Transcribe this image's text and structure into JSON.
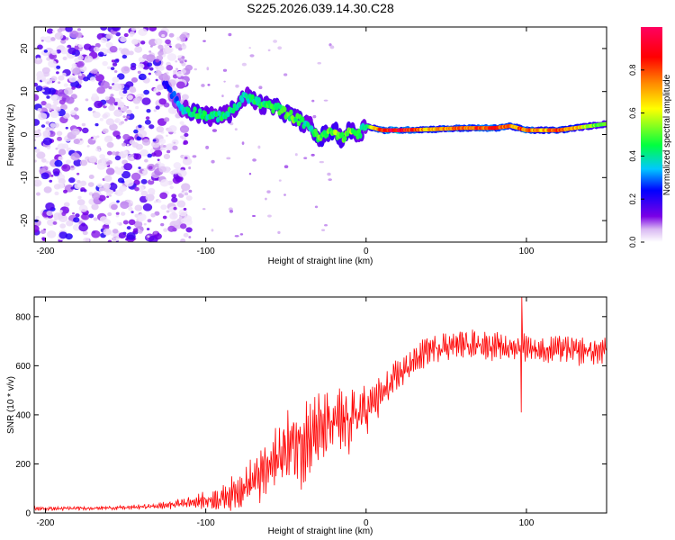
{
  "title": "S225.2026.039.14.30.C28",
  "chart_data": [
    {
      "type": "heatmap",
      "xlabel": "Height of straight line (km)",
      "ylabel": "Frequency (Hz)",
      "xlim": [
        -207,
        150
      ],
      "ylim": [
        -25,
        25
      ],
      "xticks": [
        -200,
        -100,
        0,
        100
      ],
      "yticks": [
        -20,
        -10,
        0,
        10,
        20
      ],
      "colorbar": {
        "label": "Normalized spectral amplitude",
        "range": [
          0,
          1
        ],
        "ticks": [
          0.0,
          0.2,
          0.4,
          0.6,
          0.8
        ],
        "colors": [
          "#ffffff",
          "#d9b8f2",
          "#7a00e6",
          "#0000ff",
          "#00c8ff",
          "#00ff40",
          "#ffff00",
          "#ff8800",
          "#ff0000",
          "#ff0060"
        ]
      },
      "ridge": {
        "x": [
          -125,
          -115,
          -105,
          -95,
          -85,
          -75,
          -65,
          -55,
          -45,
          -40,
          -35,
          -30,
          -25,
          -20,
          -15,
          -10,
          -5,
          0,
          10,
          20,
          40,
          60,
          80,
          90,
          100,
          110,
          120,
          130,
          140,
          150
        ],
        "freq": [
          12,
          6,
          5,
          4,
          5,
          9,
          7,
          6,
          4,
          3,
          2,
          -1,
          0,
          1,
          -1,
          1,
          0,
          2,
          1,
          1,
          1.2,
          1.5,
          1.5,
          2,
          1,
          1,
          1,
          1.5,
          2,
          2.5
        ],
        "amp": [
          0.2,
          0.35,
          0.45,
          0.4,
          0.45,
          0.4,
          0.45,
          0.45,
          0.5,
          0.45,
          0.4,
          0.5,
          0.5,
          0.55,
          0.5,
          0.55,
          0.45,
          0.4,
          0.9,
          0.95,
          0.7,
          0.8,
          0.85,
          0.75,
          0.8,
          0.7,
          0.8,
          0.75,
          0.55,
          0.5
        ]
      },
      "noise_region": [
        -207,
        -120
      ]
    },
    {
      "type": "line",
      "xlabel": "Height of straight line (km)",
      "ylabel": "SNR (10 * v/v)",
      "xlim": [
        -207,
        150
      ],
      "ylim": [
        0,
        880
      ],
      "xticks": [
        -200,
        -100,
        0,
        100
      ],
      "yticks": [
        0,
        200,
        400,
        600,
        800
      ],
      "color": "#ff0000",
      "series": [
        {
          "name": "SNR",
          "x": [
            -207,
            -190,
            -170,
            -150,
            -130,
            -120,
            -110,
            -100,
            -90,
            -80,
            -70,
            -60,
            -50,
            -40,
            -30,
            -20,
            -10,
            0,
            10,
            20,
            30,
            40,
            50,
            60,
            70,
            80,
            90,
            100,
            110,
            120,
            130,
            140,
            150
          ],
          "mean": [
            18,
            18,
            20,
            22,
            28,
            35,
            45,
            50,
            60,
            90,
            130,
            190,
            260,
            300,
            330,
            360,
            380,
            420,
            480,
            560,
            620,
            670,
            680,
            690,
            690,
            680,
            670,
            680,
            660,
            670,
            660,
            660,
            660
          ],
          "amp": [
            8,
            8,
            8,
            10,
            12,
            20,
            30,
            40,
            50,
            80,
            110,
            130,
            170,
            200,
            170,
            150,
            150,
            140,
            90,
            70,
            60,
            60,
            60,
            60,
            60,
            60,
            60,
            60,
            60,
            60,
            60,
            60,
            60
          ]
        }
      ]
    }
  ]
}
